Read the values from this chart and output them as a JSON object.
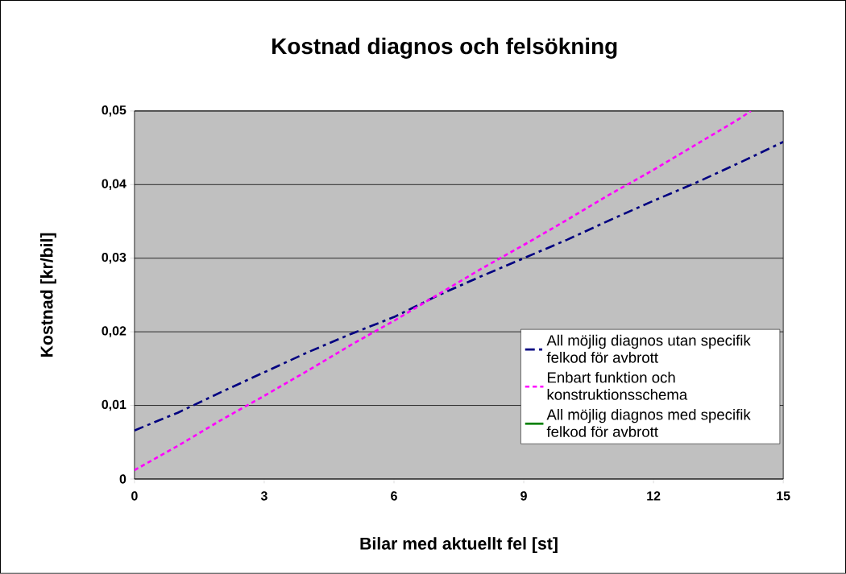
{
  "chart_data": {
    "type": "line",
    "title": "Kostnad diagnos och felsökning",
    "xlabel": "Bilar med aktuellt fel [st]",
    "ylabel": "Kostnad [kr/bil]",
    "x": [
      0,
      1,
      2,
      3,
      4,
      5,
      6,
      7,
      8,
      9,
      10,
      11,
      12,
      13,
      14,
      15
    ],
    "series": [
      {
        "name": "All möjlig diagnos utan specifik felkod för avbrott",
        "color": "#000080",
        "line_style": "dashed",
        "values": [
          0.0066,
          0.009,
          0.0118,
          0.0145,
          0.0172,
          0.0197,
          0.022,
          0.0249,
          0.0275,
          0.03,
          0.0325,
          0.0352,
          0.0378,
          0.0403,
          0.043,
          0.0458
        ]
      },
      {
        "name": "Enbart funktion och konstruktionsschema",
        "color": "#ff00ff",
        "line_style": "dotted",
        "x": [
          0,
          1,
          2,
          3,
          4,
          5,
          6,
          7,
          8,
          9,
          10,
          11,
          12,
          13,
          14,
          14.25
        ],
        "values": [
          0.0012,
          0.0045,
          0.008,
          0.0113,
          0.0147,
          0.0182,
          0.0215,
          0.025,
          0.0285,
          0.0318,
          0.0352,
          0.0387,
          0.042,
          0.0455,
          0.049,
          0.05
        ]
      },
      {
        "name": "All möjlig diagnos med specifik felkod för avbrott",
        "color": "#008000",
        "line_style": "solid",
        "values": [
          null,
          null,
          null,
          null,
          null,
          null,
          null,
          null,
          null,
          null,
          null,
          null,
          null,
          null,
          null,
          null
        ]
      }
    ],
    "xlim": [
      0,
      15
    ],
    "xticks": [
      0,
      3,
      6,
      9,
      12,
      15
    ],
    "ylim": [
      0,
      0.05
    ],
    "yticks": [
      0,
      {
        "value": 0.01,
        "label": "0,01"
      },
      {
        "value": 0.02,
        "label": "0,02"
      },
      {
        "value": 0.03,
        "label": "0,03"
      },
      {
        "value": 0.04,
        "label": "0,04"
      },
      {
        "value": 0.05,
        "label": "0,05"
      }
    ],
    "grid": "y",
    "legend": "bottom right",
    "marker": "none"
  }
}
